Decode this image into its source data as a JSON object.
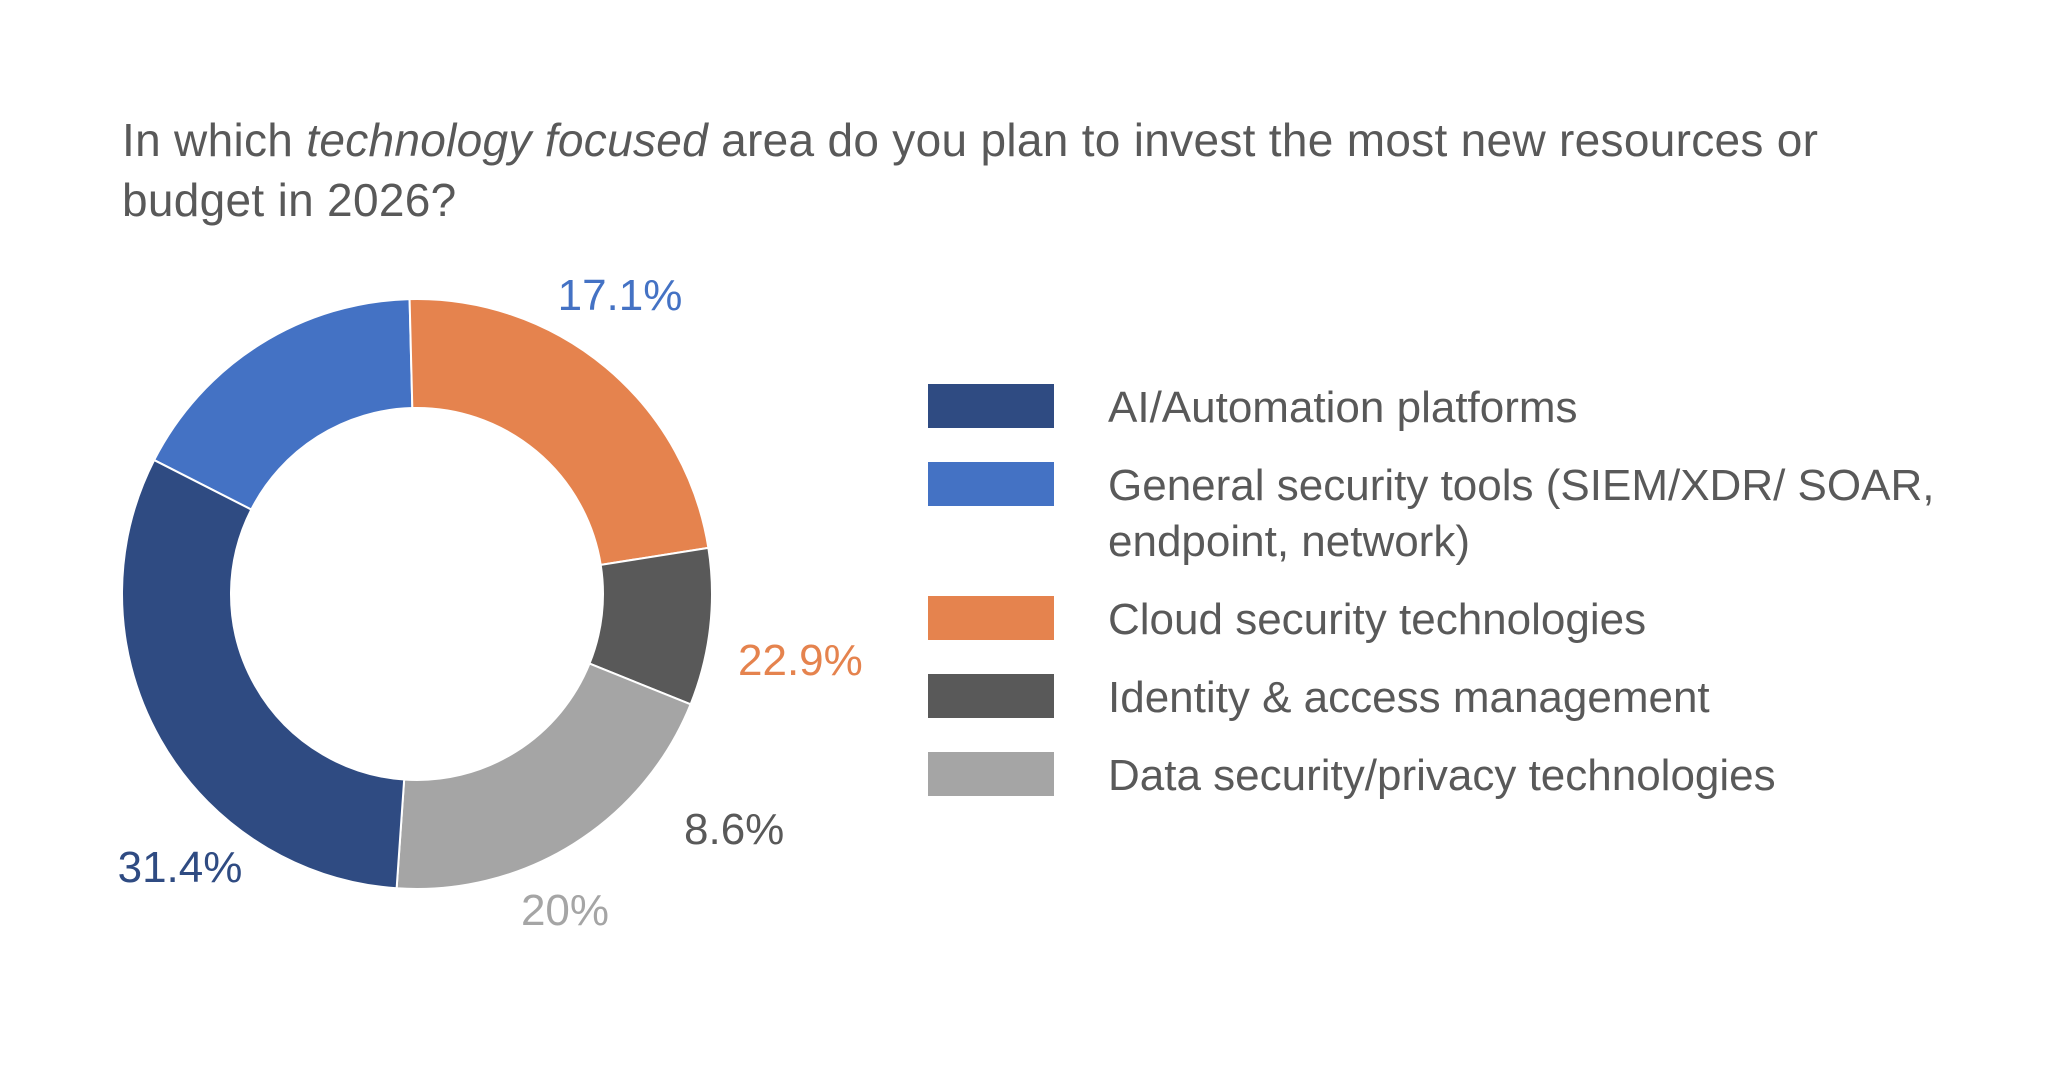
{
  "title": {
    "part1": "In which ",
    "emphasis": "technology focused",
    "part2": " area do you plan to invest the most new resources or budget in 2026?"
  },
  "chart_data": {
    "type": "pie",
    "donut": true,
    "title": "In which technology focused area do you plan to invest the most new resources or budget in 2026?",
    "slices": [
      {
        "label": "General security tools (SIEM/XDR/ SOAR, endpoint, network)",
        "value": 17.1,
        "display": "17.1%",
        "color": "#4472c4"
      },
      {
        "label": "Cloud security technologies",
        "value": 22.9,
        "display": "22.9%",
        "color": "#e5834e"
      },
      {
        "label": "Identity & access management",
        "value": 8.6,
        "display": "8.6%",
        "color": "#595959"
      },
      {
        "label": "Data security/privacy technologies",
        "value": 20,
        "display": "20%",
        "color": "#a5a5a5"
      },
      {
        "label": "AI/Automation platforms",
        "value": 31.4,
        "display": "31.4%",
        "color": "#2f4b82"
      }
    ],
    "legend": [
      {
        "label": "AI/Automation platforms",
        "color": "#2f4b82"
      },
      {
        "label": "General security tools (SIEM/XDR/ SOAR, endpoint, network)",
        "color": "#4472c4"
      },
      {
        "label": "Cloud security technologies",
        "color": "#e5834e"
      },
      {
        "label": "Identity & access management",
        "color": "#595959"
      },
      {
        "label": "Data security/privacy technologies",
        "color": "#a5a5a5"
      }
    ],
    "legend_position": "right"
  }
}
